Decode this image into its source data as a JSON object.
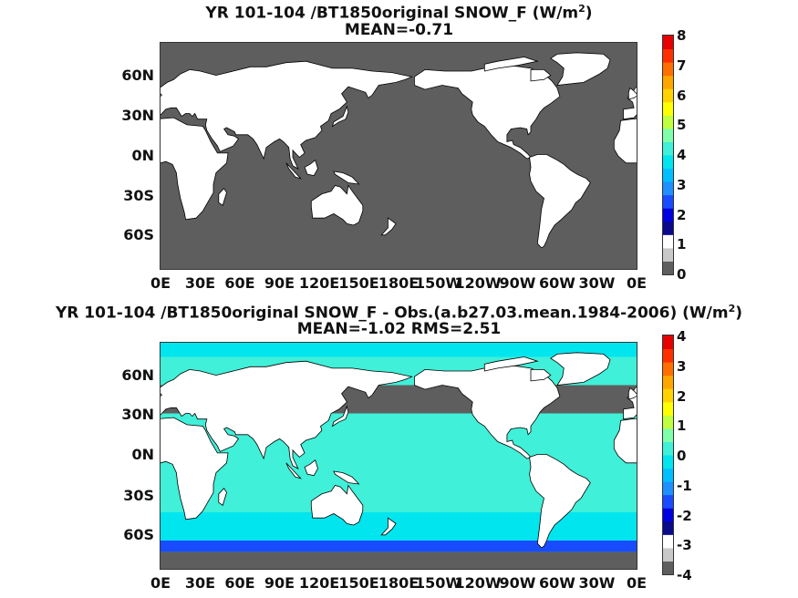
{
  "chart_data": [
    {
      "type": "heatmap",
      "title": "YR 101-104 /BT1850original  SNOW_F (W/m",
      "title_sup": "2",
      "title_end": ")",
      "subtitle": "MEAN=-0.71",
      "y_ticks": [
        "60N",
        "30N",
        "0N",
        "30S",
        "60S"
      ],
      "x_ticks": [
        "0E",
        "30E",
        "60E",
        "90E",
        "120E",
        "150E",
        "180E",
        "150W",
        "120W",
        "90W",
        "60W",
        "30W",
        "0E"
      ],
      "colorbar": {
        "ticks": [
          "8",
          "7",
          "6",
          "5",
          "4",
          "3",
          "2",
          "1",
          "0"
        ],
        "range": [
          0,
          8
        ],
        "colors": [
          "#5e5e5e",
          "#c8c8c8",
          "#ffffff",
          "#0a0a8a",
          "#0000e0",
          "#1a4cff",
          "#1e90ff",
          "#00bfff",
          "#00e5ee",
          "#40f0d8",
          "#7fffaa",
          "#bfff40",
          "#ffff00",
          "#ffd200",
          "#ffa500",
          "#ff6e00",
          "#ff3000",
          "#e60000"
        ]
      },
      "ocean_value": 0,
      "ocean_color": "#5e5e5e",
      "land_color": "#ffffff"
    },
    {
      "type": "heatmap",
      "title": "YR 101-104 /BT1850original SNOW_F - Obs.(a.b27.03.mean.1984-2006) (W/m",
      "title_sup": "2",
      "title_end": ")",
      "subtitle": "MEAN=-1.02 RMS=2.51",
      "y_ticks": [
        "60N",
        "30N",
        "0N",
        "30S",
        "60S"
      ],
      "x_ticks": [
        "0E",
        "30E",
        "60E",
        "90E",
        "120E",
        "150E",
        "180E",
        "150W",
        "120W",
        "90W",
        "60W",
        "30W",
        "0E"
      ],
      "colorbar": {
        "ticks": [
          "4",
          "3",
          "2",
          "1",
          "0",
          "-1",
          "-2",
          "-3",
          "-4"
        ],
        "range": [
          -4,
          4
        ],
        "colors": [
          "#5e5e5e",
          "#c8c8c8",
          "#ffffff",
          "#0a0a8a",
          "#0000e0",
          "#1a4cff",
          "#1e90ff",
          "#00bfff",
          "#00e5ee",
          "#40f0d8",
          "#7fffaa",
          "#bfff40",
          "#ffff00",
          "#ffd200",
          "#ffa500",
          "#ff6e00",
          "#ff3000",
          "#e60000"
        ]
      },
      "bands": [
        {
          "lat_range": [
            80,
            90
          ],
          "value": -1,
          "color": "#00e5ee"
        },
        {
          "lat_range": [
            40,
            60
          ],
          "value": -4,
          "color": "#5e5e5e"
        },
        {
          "lat_range": [
            -30,
            40
          ],
          "value": 0.2,
          "color": "#40f0d8"
        },
        {
          "lat_range": [
            -50,
            -30
          ],
          "value": -1,
          "color": "#00e5ee"
        },
        {
          "lat_range": [
            -58,
            -50
          ],
          "value": -2,
          "color": "#1a4cff"
        },
        {
          "lat_range": [
            -70,
            -58
          ],
          "value": -4,
          "color": "#5e5e5e"
        }
      ],
      "land_color": "#ffffff"
    }
  ]
}
